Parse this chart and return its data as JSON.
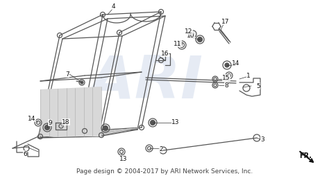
{
  "bg_color": "#ffffff",
  "footer_text": "Page design © 2004-2017 by ARI Network Services, Inc.",
  "footer_fontsize": 6.5,
  "watermark_text": "ARI",
  "watermark_color": "#c8d4e8",
  "watermark_alpha": 0.45,
  "line_color": "#555555",
  "line_width": 0.9,
  "thick_lw": 1.4,
  "label_fontsize": 6.5
}
